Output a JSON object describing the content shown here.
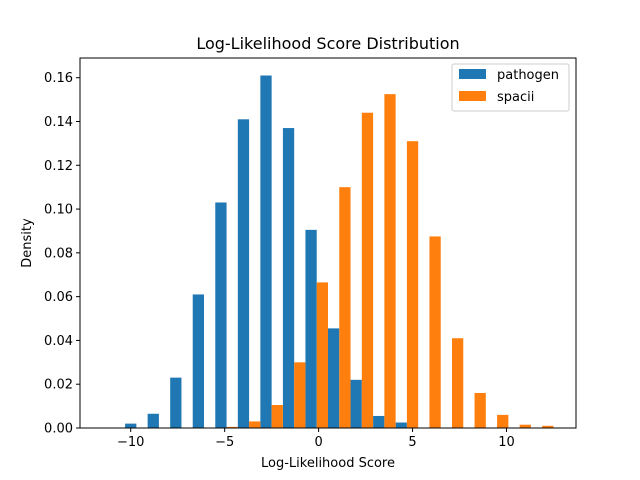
{
  "chart_data": {
    "type": "bar",
    "title": "Log-Likelihood Score Distribution",
    "xlabel": "Log-Likelihood Score",
    "ylabel": "Density",
    "xlim": [
      -12.7,
      13.7
    ],
    "ylim": [
      0,
      0.169
    ],
    "xticks": [
      -10,
      -5,
      0,
      5,
      10
    ],
    "xtick_labels": [
      "−10",
      "−5",
      "0",
      "5",
      "10"
    ],
    "yticks": [
      0.0,
      0.02,
      0.04,
      0.06,
      0.08,
      0.1,
      0.12,
      0.14,
      0.16
    ],
    "ytick_labels": [
      "0.00",
      "0.02",
      "0.04",
      "0.06",
      "0.08",
      "0.10",
      "0.12",
      "0.14",
      "0.16"
    ],
    "bin_width": 1.2,
    "bin_starts": [
      -11.5,
      -10.3,
      -9.1,
      -7.9,
      -6.7,
      -5.5,
      -4.3,
      -3.1,
      -1.9,
      -0.7,
      0.5,
      1.7,
      2.9,
      4.1,
      5.3,
      6.5,
      7.7,
      8.9,
      10.1,
      11.3
    ],
    "series": [
      {
        "name": "pathogen",
        "color": "#1f77b4",
        "values": [
          0.0,
          0.002,
          0.0065,
          0.023,
          0.061,
          0.103,
          0.141,
          0.161,
          0.137,
          0.0905,
          0.0455,
          0.022,
          0.0055,
          0.0025,
          0.0,
          0.0,
          0.0,
          0.0,
          0.0,
          0.0
        ]
      },
      {
        "name": "spacii",
        "color": "#ff7f0e",
        "values": [
          0.0,
          0.0,
          0.0,
          0.0,
          0.0,
          0.0005,
          0.003,
          0.0105,
          0.03,
          0.0665,
          0.11,
          0.144,
          0.1525,
          0.131,
          0.0875,
          0.041,
          0.016,
          0.006,
          0.0015,
          0.001
        ]
      }
    ],
    "legend_position": "top-right",
    "grid": false
  }
}
